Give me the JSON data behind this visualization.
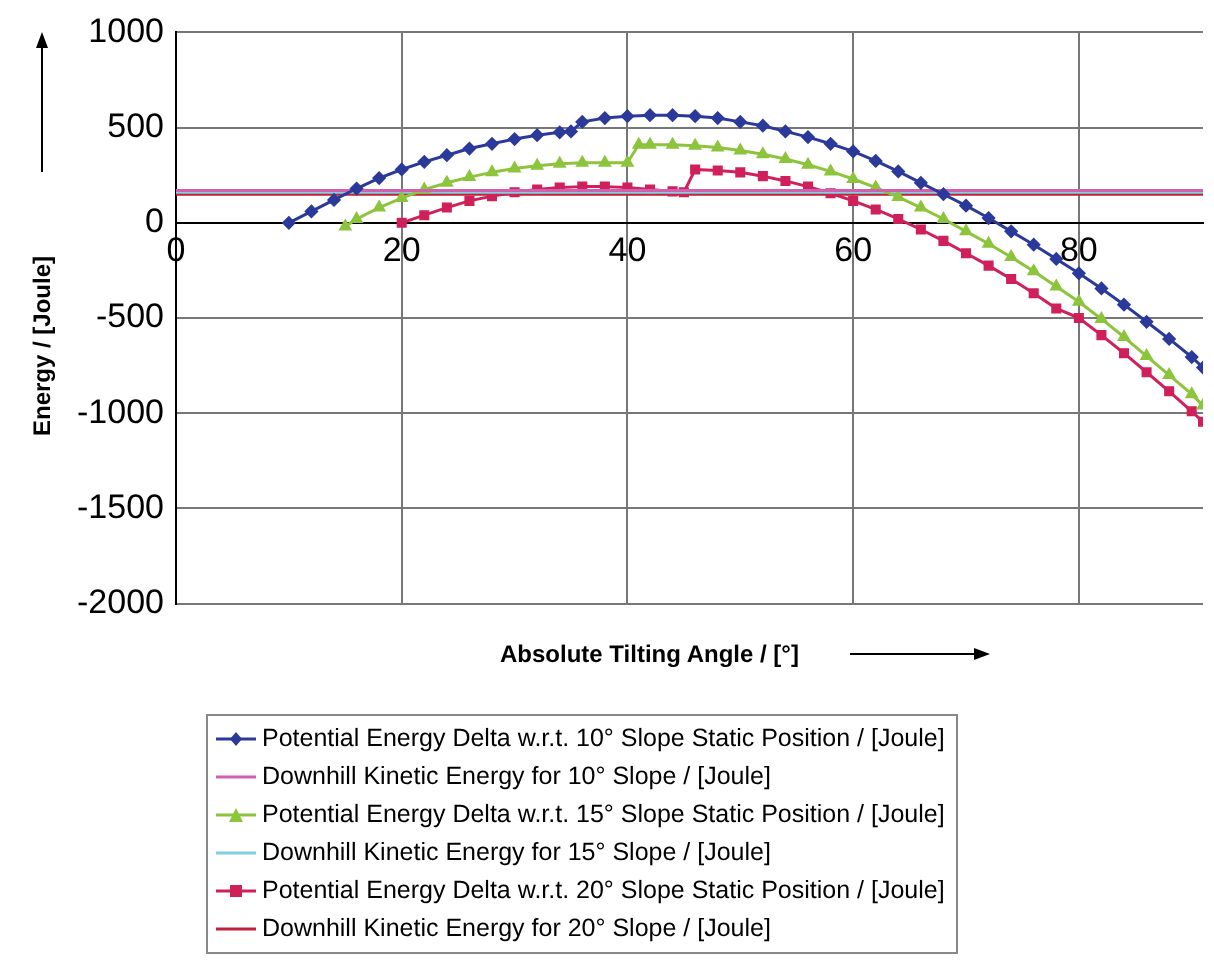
{
  "chart_data": {
    "type": "line",
    "xlabel": "Absolute Tilting Angle / [°]",
    "ylabel": "Energy / [Joule]",
    "xlim": [
      0,
      91
    ],
    "xticks": [
      0,
      20,
      40,
      60,
      80
    ],
    "ylim": [
      -2000,
      1000
    ],
    "yticks": [
      -2000,
      -1500,
      -1000,
      -500,
      0,
      500,
      1000
    ],
    "grid": true,
    "legend": "bottom",
    "series": [
      {
        "name": "Potential Energy Delta w.r.t. 10° Slope Static Position / [Joule]",
        "color": "#2b3a9a",
        "marker": "diamond",
        "x": [
          10,
          12,
          14,
          16,
          18,
          20,
          22,
          24,
          26,
          28,
          30,
          32,
          34,
          35,
          36,
          38,
          40,
          42,
          44,
          46,
          48,
          50,
          52,
          54,
          56,
          58,
          60,
          62,
          64,
          66,
          68,
          70,
          72,
          74,
          76,
          78,
          80,
          82,
          84,
          86,
          88,
          90,
          91
        ],
        "values": [
          0,
          60,
          120,
          180,
          235,
          280,
          320,
          355,
          390,
          415,
          440,
          460,
          475,
          480,
          530,
          550,
          560,
          565,
          565,
          560,
          550,
          530,
          510,
          480,
          450,
          415,
          375,
          325,
          270,
          210,
          150,
          90,
          25,
          -45,
          -115,
          -190,
          -265,
          -345,
          -430,
          -520,
          -610,
          -705,
          -760
        ]
      },
      {
        "name": "Downhill Kinetic Energy for 10° Slope / [Joule]",
        "color": "#d060b0",
        "marker": "none",
        "x": [
          0,
          91
        ],
        "values": [
          170,
          170
        ]
      },
      {
        "name": "Potential Energy Delta w.r.t. 15° Slope Static Position / [Joule]",
        "color": "#8cc43c",
        "marker": "triangle",
        "x": [
          15,
          16,
          18,
          20,
          22,
          24,
          26,
          28,
          30,
          32,
          34,
          36,
          38,
          40,
          41,
          42,
          44,
          46,
          48,
          50,
          52,
          54,
          56,
          58,
          60,
          62,
          64,
          66,
          68,
          70,
          72,
          74,
          76,
          78,
          80,
          82,
          84,
          86,
          88,
          90,
          91
        ],
        "values": [
          -20,
          20,
          80,
          130,
          175,
          210,
          240,
          265,
          285,
          300,
          310,
          315,
          315,
          315,
          410,
          410,
          410,
          405,
          395,
          380,
          360,
          335,
          305,
          270,
          230,
          185,
          135,
          80,
          20,
          -45,
          -110,
          -180,
          -255,
          -335,
          -415,
          -505,
          -600,
          -700,
          -800,
          -900,
          -960
        ]
      },
      {
        "name": "Downhill Kinetic Energy for 15° Slope / [Joule]",
        "color": "#80d0e0",
        "marker": "none",
        "x": [
          0,
          91
        ],
        "values": [
          160,
          160
        ]
      },
      {
        "name": "Potential Energy Delta w.r.t. 20° Slope Static Position / [Joule]",
        "color": "#d0205a",
        "marker": "square",
        "x": [
          20,
          22,
          24,
          26,
          28,
          30,
          32,
          34,
          36,
          38,
          40,
          42,
          44,
          45,
          46,
          48,
          50,
          52,
          54,
          56,
          58,
          60,
          62,
          64,
          66,
          68,
          70,
          72,
          74,
          76,
          78,
          80,
          82,
          84,
          86,
          88,
          90,
          91
        ],
        "values": [
          0,
          40,
          80,
          115,
          140,
          160,
          175,
          185,
          190,
          190,
          185,
          175,
          165,
          160,
          280,
          275,
          265,
          245,
          220,
          190,
          155,
          115,
          70,
          20,
          -35,
          -95,
          -160,
          -225,
          -295,
          -370,
          -450,
          -500,
          -590,
          -685,
          -785,
          -885,
          -990,
          -1045
        ]
      },
      {
        "name": "Downhill Kinetic Energy for 20° Slope / [Joule]",
        "color": "#c0203a",
        "marker": "none",
        "x": [
          0,
          91
        ],
        "values": [
          150,
          150
        ]
      }
    ]
  }
}
